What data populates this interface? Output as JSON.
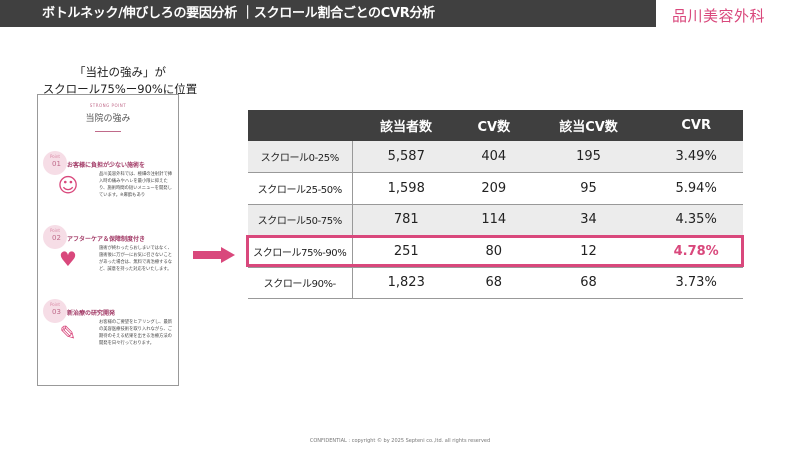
{
  "header": {
    "title": "ボトルネック/伸びしろの要因分析 ｜スクロール割合ごとのCVR分析",
    "logo": "品川美容外科"
  },
  "caption": {
    "line1": "「当社の強み」が",
    "line2": "スクロール75%ー90%に位置"
  },
  "card": {
    "eyebrow": "STRONG POINT",
    "title": "当院の強み",
    "points": [
      {
        "label": "Point",
        "num": "01",
        "title": "お客様に負担が少ない施術を",
        "icon": "doctor-icon",
        "desc": "品川美容外科では、極細の注射針で挿入時の痛みやハレを最小限に抑えたり、施術時間の短いメニューを開発しています。※麻酔もあり"
      },
      {
        "label": "Point",
        "num": "02",
        "title": "アフターケア＆保障制度付き",
        "icon": "heart-hand-icon",
        "desc": "施術が終わったらおしまいではなく、施術後に万が一にお気に召さないことがあった場合は、無料で再治療するなど、誠意を持った対応をいたします。"
      },
      {
        "label": "Point",
        "num": "03",
        "title": "新治療の研究開発",
        "icon": "syringe-icon",
        "desc": "お客様のご要望をヒアリングし、最新の美容医療技術を取り入れながら、ご期待のそえる結果を出せる治療方法の開発を日々行っております。"
      }
    ]
  },
  "table": {
    "headers": [
      "",
      "該当者数",
      "CV数",
      "該当CV数",
      "CVR"
    ],
    "rows": [
      [
        "スクロール0-25%",
        "5,587",
        "404",
        "195",
        "3.49%"
      ],
      [
        "スクロール25-50%",
        "1,598",
        "209",
        "95",
        "5.94%"
      ],
      [
        "スクロール50-75%",
        "781",
        "114",
        "34",
        "4.35%"
      ],
      [
        "スクロール75%-90%",
        "251",
        "80",
        "12",
        "4.78%"
      ],
      [
        "スクロール90%-",
        "1,823",
        "68",
        "68",
        "3.73%"
      ]
    ],
    "highlight_row": 3
  },
  "colors": {
    "accent": "#d9487c",
    "header_bg": "#404040"
  },
  "footer": "CONFIDENTIAL : copyright © by 2025 Septeni co.,ltd.  all rights reserved"
}
